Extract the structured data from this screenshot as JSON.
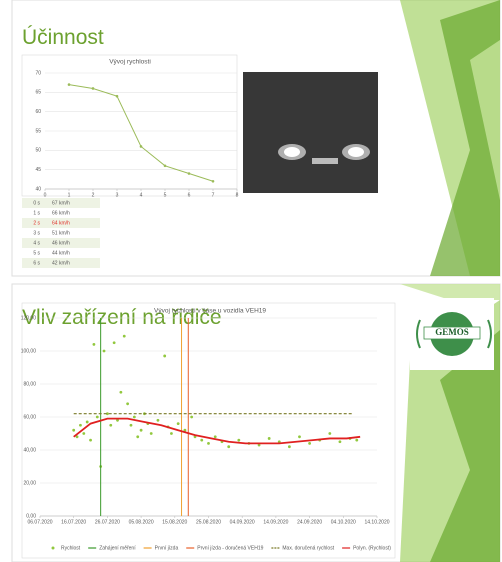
{
  "slides": [
    {
      "title": "Účinnost"
    },
    {
      "title": "Vliv zařízení na řidiče",
      "logo": "GEMOS"
    }
  ],
  "table": {
    "rows": [
      [
        "0 s",
        "67 km/h"
      ],
      [
        "1 s",
        "66 km/h"
      ],
      [
        "2 s",
        "64 km/h"
      ],
      [
        "3 s",
        "51 km/h"
      ],
      [
        "4 s",
        "46 km/h"
      ],
      [
        "5 s",
        "44 km/h"
      ],
      [
        "6 s",
        "42 km/h"
      ]
    ],
    "highlight_row": 2,
    "highlight_color": "#e0302a"
  },
  "chart_data": [
    {
      "type": "line",
      "title": "Vývoj rychlosti",
      "color": "#9bbb59",
      "x": [
        1,
        2,
        3,
        4,
        5,
        6,
        7
      ],
      "values": [
        67,
        66,
        64,
        51,
        46,
        44,
        42
      ],
      "xlim": [
        0,
        8
      ],
      "xticks": [
        0,
        1,
        2,
        3,
        4,
        5,
        6,
        7,
        8
      ],
      "ylim": [
        40,
        70
      ],
      "yticks": [
        40,
        45,
        50,
        55,
        60,
        65,
        70
      ],
      "grid": true
    },
    {
      "type": "scatter",
      "title": "Vývoj rychlosti v čase u vozidla VEH19",
      "xlim": [
        "2020-07-06",
        "2020-10-14"
      ],
      "xticks": [
        {
          "value": "2020-07-06",
          "label": "06.07.2020"
        },
        {
          "value": "2020-07-16",
          "label": "16.07.2020"
        },
        {
          "value": "2020-07-26",
          "label": "26.07.2020"
        },
        {
          "value": "2020-08-05",
          "label": "05.08.2020"
        },
        {
          "value": "2020-08-15",
          "label": "15.08.2020"
        },
        {
          "value": "2020-08-25",
          "label": "25.08.2020"
        },
        {
          "value": "2020-09-04",
          "label": "04.09.2020"
        },
        {
          "value": "2020-09-14",
          "label": "14.09.2020"
        },
        {
          "value": "2020-09-24",
          "label": "24.09.2020"
        },
        {
          "value": "2020-10-04",
          "label": "04.10.2020"
        },
        {
          "value": "2020-10-14",
          "label": "14.10.2020"
        }
      ],
      "ylim": [
        0,
        120
      ],
      "yticks": [
        {
          "value": 0,
          "label": "0,00"
        },
        {
          "value": 20,
          "label": "20,00"
        },
        {
          "value": 40,
          "label": "40,00"
        },
        {
          "value": 60,
          "label": "60,00"
        },
        {
          "value": 80,
          "label": "80,00"
        },
        {
          "value": 100,
          "label": "100,00"
        },
        {
          "value": 120,
          "label": "120,00"
        }
      ],
      "grid": true,
      "legend": "bottom",
      "series": [
        {
          "name": "Rychlost",
          "color": "#92c83e",
          "kind": "points",
          "x": [
            "2020-07-16",
            "2020-07-17",
            "2020-07-18",
            "2020-07-19",
            "2020-07-20",
            "2020-07-21",
            "2020-07-22",
            "2020-07-23",
            "2020-07-24",
            "2020-07-25",
            "2020-07-26",
            "2020-07-27",
            "2020-07-28",
            "2020-07-29",
            "2020-07-30",
            "2020-07-31",
            "2020-08-01",
            "2020-08-02",
            "2020-08-03",
            "2020-08-04",
            "2020-08-05",
            "2020-08-06",
            "2020-08-07",
            "2020-08-08",
            "2020-08-10",
            "2020-08-12",
            "2020-08-13",
            "2020-08-14",
            "2020-08-16",
            "2020-08-18",
            "2020-08-20",
            "2020-08-21",
            "2020-08-23",
            "2020-08-25",
            "2020-08-27",
            "2020-08-29",
            "2020-08-31",
            "2020-09-03",
            "2020-09-06",
            "2020-09-09",
            "2020-09-12",
            "2020-09-15",
            "2020-09-18",
            "2020-09-21",
            "2020-09-24",
            "2020-09-27",
            "2020-09-30",
            "2020-10-03",
            "2020-10-06",
            "2020-10-08"
          ],
          "values": [
            52,
            48,
            55,
            50,
            57,
            46,
            104,
            60,
            30,
            100,
            62,
            55,
            105,
            58,
            75,
            109,
            68,
            55,
            60,
            48,
            52,
            62,
            56,
            50,
            58,
            97,
            54,
            50,
            56,
            52,
            60,
            48,
            46,
            44,
            48,
            45,
            42,
            46,
            44,
            43,
            47,
            45,
            42,
            48,
            44,
            46,
            50,
            45,
            47,
            46
          ]
        },
        {
          "name": "Zahájení měření",
          "color": "#3a9a2a",
          "kind": "vline",
          "x": [
            "2020-07-24"
          ]
        },
        {
          "name": "První jízda",
          "color": "#f0a030",
          "kind": "vline",
          "x": [
            "2020-08-17"
          ]
        },
        {
          "name": "První jízda - doručená VEH19",
          "color": "#e8602a",
          "kind": "vline",
          "x": [
            "2020-08-19"
          ]
        },
        {
          "name": "Max. doručená rychlost",
          "color": "#7a7a28",
          "kind": "line",
          "dash": true,
          "x": [
            "2020-07-16",
            "2020-10-07"
          ],
          "values": [
            62,
            62
          ]
        },
        {
          "name": "Polyn. (Rychlost)",
          "color": "#e02020",
          "kind": "line",
          "dash": false,
          "x": [
            "2020-07-16",
            "2020-07-21",
            "2020-07-26",
            "2020-08-01",
            "2020-08-06",
            "2020-08-11",
            "2020-08-16",
            "2020-08-21",
            "2020-08-26",
            "2020-08-31",
            "2020-09-05",
            "2020-09-10",
            "2020-09-15",
            "2020-09-20",
            "2020-09-25",
            "2020-09-30",
            "2020-10-05",
            "2020-10-09"
          ],
          "values": [
            48,
            56,
            59,
            59,
            57,
            55,
            52,
            49,
            47,
            45,
            44,
            44,
            44,
            45,
            46,
            47,
            47,
            48
          ]
        }
      ]
    }
  ]
}
